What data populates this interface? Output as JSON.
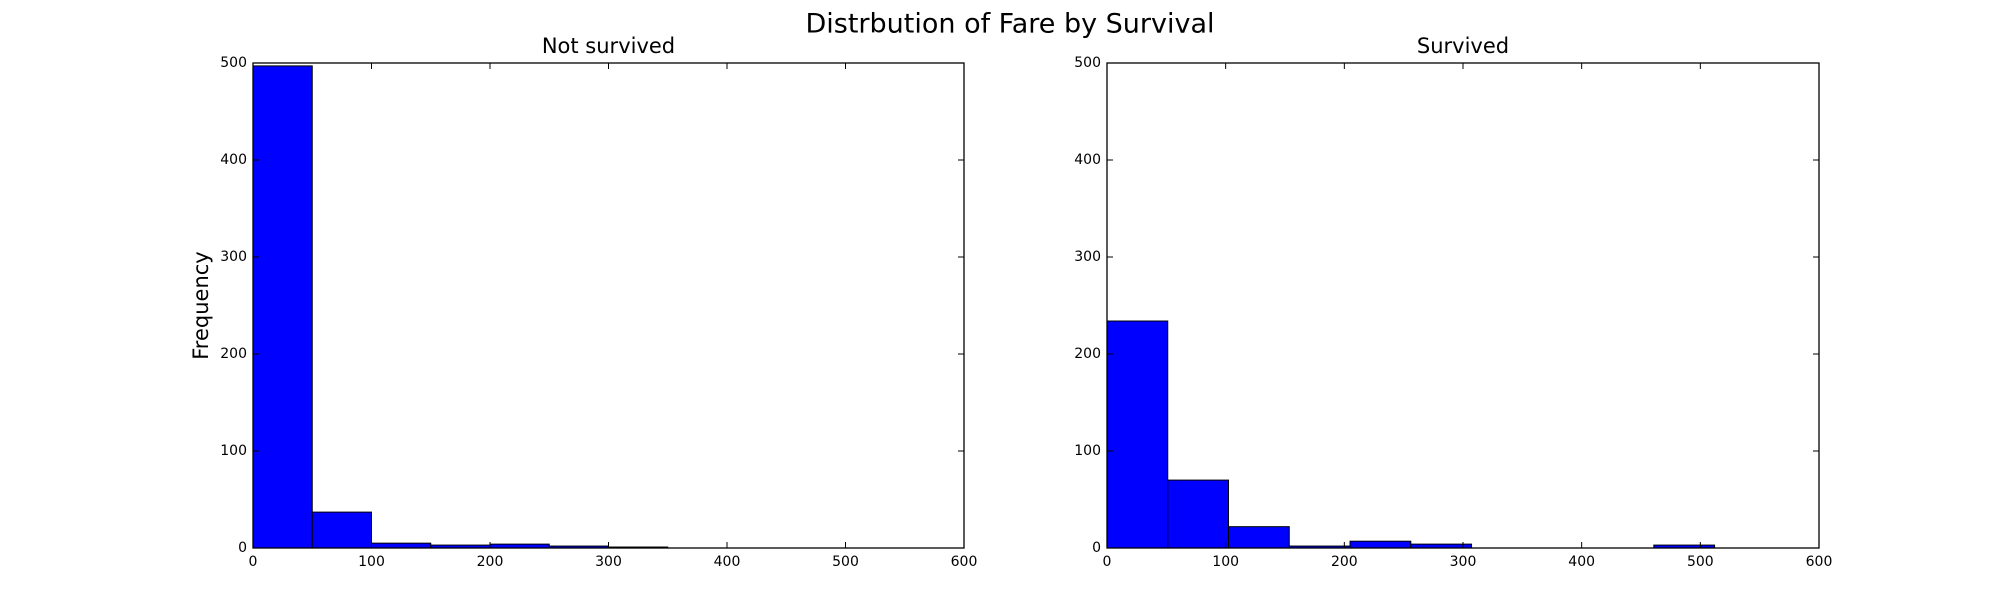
{
  "title": "Distrbution of Fare by Survival",
  "chart_data": [
    {
      "type": "histogram",
      "title": "Not survived",
      "ylabel": "Frequency",
      "color": "#0000ff",
      "bins": [
        0,
        50,
        100,
        150,
        200,
        250,
        300,
        350
      ],
      "counts": [
        497,
        37,
        5,
        3,
        4,
        2,
        1
      ],
      "xlim": [
        0,
        600
      ],
      "xticks": [
        0,
        100,
        200,
        300,
        400,
        500,
        600
      ],
      "ylim": [
        0,
        500
      ],
      "yticks": [
        0,
        100,
        200,
        300,
        400,
        500
      ]
    },
    {
      "type": "histogram",
      "title": "Survived",
      "color": "#0000ff",
      "bins": [
        0,
        51.2,
        102.4,
        153.6,
        204.8,
        256,
        307.2,
        358.4,
        409.6,
        460.8,
        512
      ],
      "counts": [
        234,
        70,
        22,
        2,
        7,
        4,
        0,
        0,
        0,
        3
      ],
      "xlim": [
        0,
        600
      ],
      "xticks": [
        0,
        100,
        200,
        300,
        400,
        500,
        600
      ],
      "ylim": [
        0,
        500
      ],
      "yticks": [
        0,
        100,
        200,
        300,
        400,
        500
      ]
    }
  ]
}
